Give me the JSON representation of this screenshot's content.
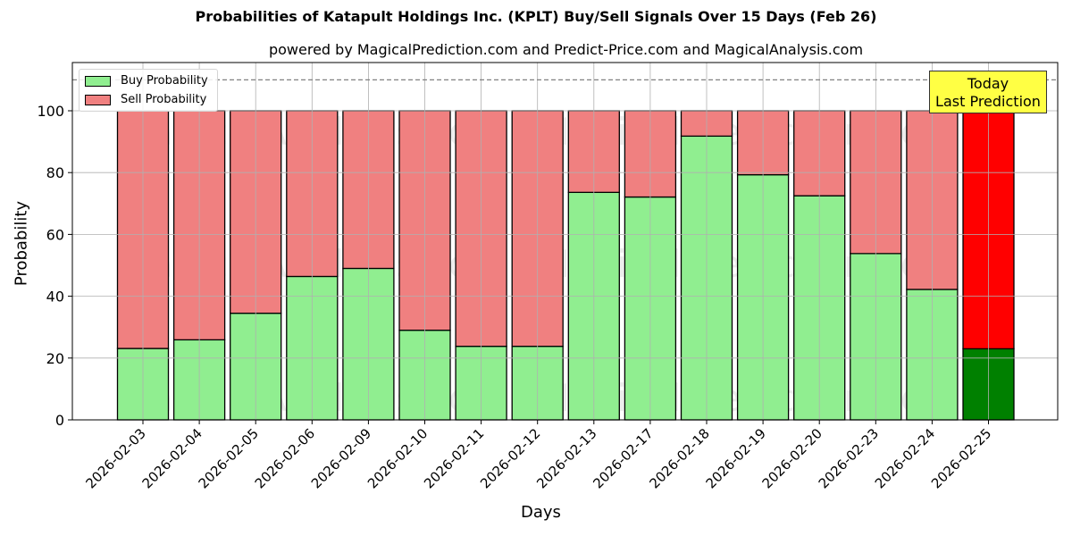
{
  "chart_data": {
    "type": "bar",
    "stacked": true,
    "title": "Probabilities of Katapult Holdings Inc. (KPLT) Buy/Sell Signals Over 15 Days (Feb 26)",
    "subtitle": "powered by MagicalPrediction.com and Predict-Price.com and MagicalAnalysis.com",
    "xlabel": "Days",
    "ylabel": "Probability",
    "ylim": [
      0,
      115
    ],
    "yticks": [
      0,
      20,
      40,
      60,
      80,
      100
    ],
    "grid": true,
    "reference_line": {
      "y": 110,
      "style": "dashed",
      "color": "#808080"
    },
    "categories": [
      "2026-02-03",
      "2026-02-04",
      "2026-02-05",
      "2026-02-06",
      "2026-02-09",
      "2026-02-10",
      "2026-02-11",
      "2026-02-12",
      "2026-02-13",
      "2026-02-17",
      "2026-02-18",
      "2026-02-19",
      "2026-02-20",
      "2026-02-23",
      "2026-02-24",
      "2026-02-25"
    ],
    "series": [
      {
        "name": "Buy Probability",
        "color": "#90ee90",
        "highlight_color": "#008000",
        "values": [
          23.1,
          25.9,
          34.5,
          46.4,
          49.0,
          29.0,
          23.8,
          23.8,
          73.6,
          72.1,
          91.8,
          79.3,
          72.5,
          53.8,
          42.2,
          23.0
        ]
      },
      {
        "name": "Sell Probability",
        "color": "#f08080",
        "highlight_color": "#ff0000",
        "values": [
          76.9,
          74.1,
          65.5,
          53.6,
          51.0,
          71.0,
          76.2,
          76.2,
          26.4,
          27.9,
          8.2,
          20.7,
          27.5,
          46.2,
          57.8,
          77.0
        ]
      }
    ],
    "legend": {
      "position": "upper left",
      "entries": [
        "Buy Probability",
        "Sell Probability"
      ]
    },
    "annotation": {
      "text_line1": "Today",
      "text_line2": "Last Prediction",
      "target_category": "2026-02-25",
      "background": "#ffff44"
    },
    "watermarks": [
      "MagicalAnalysis.com",
      "MagicalPrediction.com"
    ]
  }
}
